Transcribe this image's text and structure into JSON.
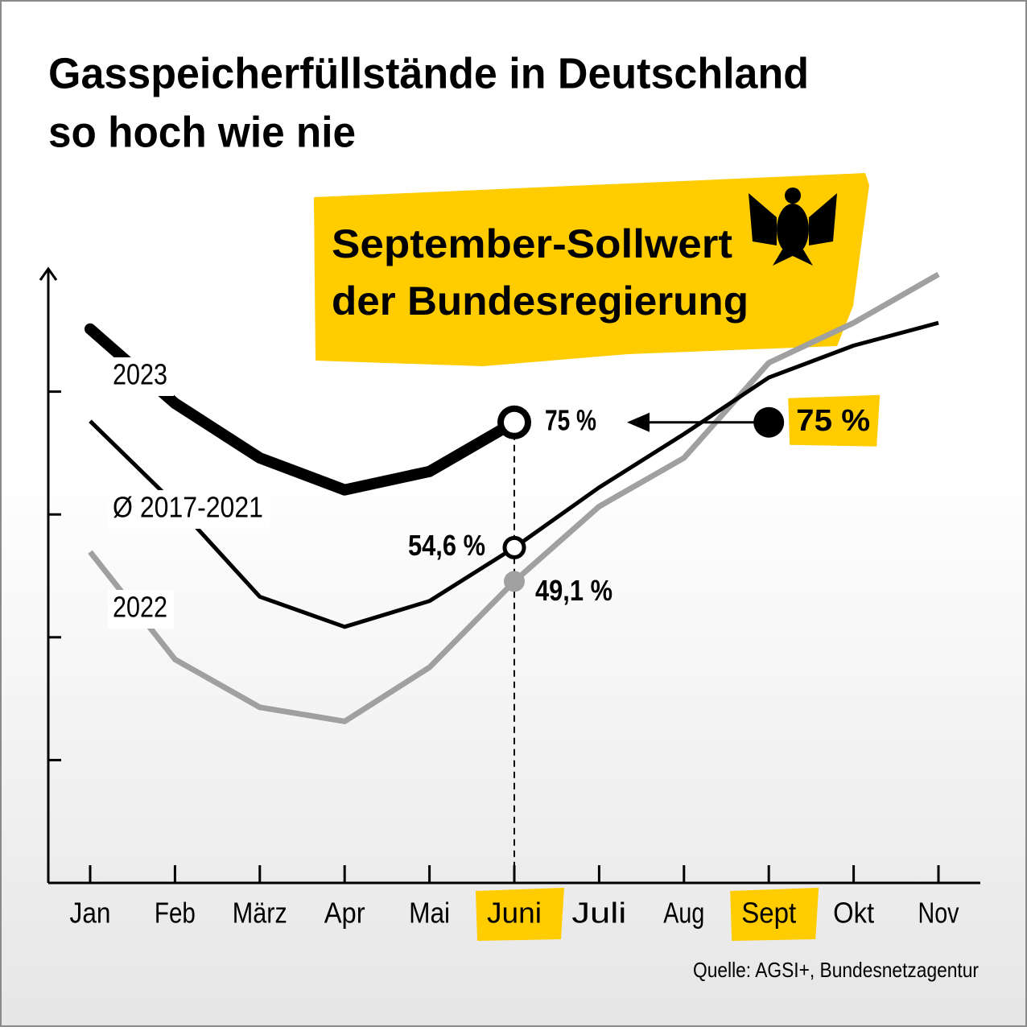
{
  "chart_data": {
    "type": "line",
    "title": [
      "Gasspeicherfüllstände in Deutschland",
      "so hoch wie nie"
    ],
    "categories": [
      "Jan",
      "Feb",
      "März",
      "Apr",
      "Mai",
      "Juni",
      "Juli",
      "Aug",
      "Sept",
      "Okt",
      "Nov"
    ],
    "highlight": [
      5,
      8
    ],
    "series": [
      {
        "name": "2023",
        "color": "#000000",
        "values": [
          90.2,
          78.1,
          69.2,
          64.0,
          67.0,
          75,
          null,
          null,
          null,
          null,
          null
        ],
        "value_labels": [
          null,
          null,
          null,
          null,
          null,
          "75 %",
          null,
          null,
          null,
          null,
          null
        ]
      },
      {
        "name": "Ø 2017-2021",
        "color": "#000000",
        "values": [
          75.2,
          61.7,
          46.6,
          41.7,
          45.9,
          54.6,
          64.4,
          73.1,
          82.3,
          87.5,
          91.2
        ],
        "value_labels": [
          null,
          null,
          null,
          null,
          null,
          "54,6 %",
          null,
          null,
          null,
          null,
          null
        ]
      },
      {
        "name": "2022",
        "color": "#a0a0a0",
        "values": [
          53.9,
          36.4,
          28.6,
          26.3,
          35.1,
          49.1,
          61.3,
          69.2,
          84.7,
          91.2,
          99.1
        ],
        "value_labels": [
          null,
          null,
          null,
          null,
          null,
          "49,1 %",
          null,
          null,
          null,
          null,
          null
        ]
      }
    ],
    "target": {
      "label": [
        "September-Sollwert",
        "der Bundesregierung"
      ],
      "category_index": 8,
      "value": 75,
      "value_label": "75 %",
      "color": "#ffcc00"
    },
    "ylim": [
      0,
      100
    ],
    "yticks": [
      20,
      40,
      60,
      80
    ],
    "source": "Quelle: AGSI+, Bundesnetzagentur"
  }
}
